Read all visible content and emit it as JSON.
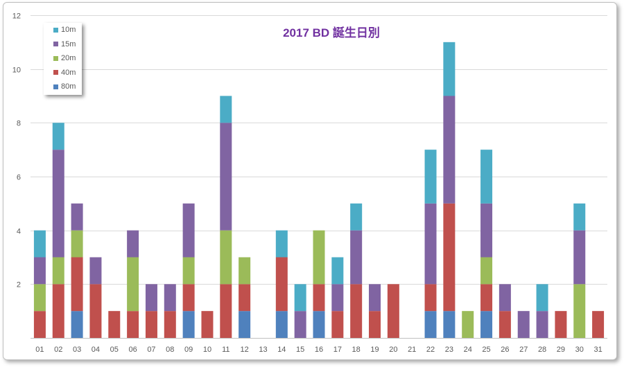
{
  "chart_data": {
    "type": "bar",
    "stacked": true,
    "title": "2017 BD 誕生日別",
    "xlabel": "",
    "ylabel": "",
    "ylim": [
      0,
      12
    ],
    "yticks": [
      2,
      4,
      6,
      8,
      10,
      12
    ],
    "grid": true,
    "legend_position": "top-left",
    "categories": [
      "01",
      "02",
      "03",
      "04",
      "05",
      "06",
      "07",
      "08",
      "09",
      "10",
      "11",
      "12",
      "13",
      "14",
      "15",
      "16",
      "17",
      "18",
      "19",
      "20",
      "21",
      "22",
      "23",
      "24",
      "25",
      "26",
      "27",
      "28",
      "29",
      "30",
      "31"
    ],
    "series": [
      {
        "name": "80m",
        "color": "#4f81bd",
        "values": [
          0,
          0,
          1,
          0,
          0,
          0,
          0,
          0,
          1,
          0,
          0,
          1,
          0,
          1,
          0,
          1,
          0,
          0,
          0,
          0,
          0,
          1,
          1,
          0,
          1,
          0,
          0,
          0,
          0,
          0,
          0
        ]
      },
      {
        "name": "40m",
        "color": "#c0504d",
        "values": [
          1,
          2,
          2,
          2,
          1,
          1,
          1,
          1,
          1,
          1,
          2,
          1,
          0,
          2,
          0,
          1,
          1,
          2,
          1,
          2,
          0,
          1,
          4,
          0,
          1,
          1,
          0,
          0,
          1,
          0,
          1
        ]
      },
      {
        "name": "20m",
        "color": "#9bbb59",
        "values": [
          1,
          1,
          1,
          0,
          0,
          2,
          0,
          0,
          1,
          0,
          2,
          1,
          0,
          0,
          0,
          2,
          0,
          0,
          0,
          0,
          0,
          0,
          0,
          1,
          1,
          0,
          0,
          0,
          0,
          2,
          0
        ]
      },
      {
        "name": "15m",
        "color": "#8064a2",
        "values": [
          1,
          4,
          1,
          1,
          0,
          1,
          1,
          1,
          2,
          0,
          4,
          0,
          0,
          0,
          1,
          0,
          1,
          2,
          1,
          0,
          0,
          3,
          4,
          0,
          2,
          1,
          1,
          1,
          0,
          2,
          0
        ]
      },
      {
        "name": "10m",
        "color": "#4bacc6",
        "values": [
          1,
          1,
          0,
          0,
          0,
          0,
          0,
          0,
          0,
          0,
          1,
          0,
          0,
          1,
          1,
          0,
          1,
          1,
          0,
          0,
          0,
          2,
          2,
          0,
          2,
          0,
          0,
          1,
          0,
          1,
          0
        ]
      }
    ],
    "legend_order": [
      "10m",
      "15m",
      "20m",
      "40m",
      "80m"
    ]
  }
}
